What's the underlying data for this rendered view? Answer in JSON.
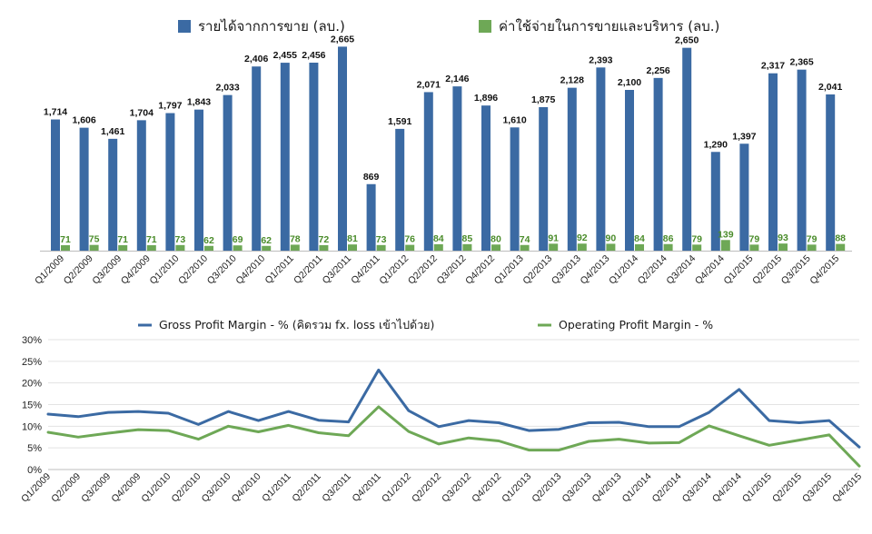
{
  "chart_data": [
    {
      "type": "bar",
      "categories": [
        "Q1/2009",
        "Q2/2009",
        "Q3/2009",
        "Q4/2009",
        "Q1/2010",
        "Q2/2010",
        "Q3/2010",
        "Q4/2010",
        "Q1/2011",
        "Q2/2011",
        "Q3/2011",
        "Q4/2011",
        "Q1/2012",
        "Q2/2012",
        "Q3/2012",
        "Q4/2012",
        "Q1/2013",
        "Q2/2013",
        "Q3/2013",
        "Q4/2013",
        "Q1/2014",
        "Q2/2014",
        "Q3/2014",
        "Q4/2014",
        "Q1/2015",
        "Q2/2015",
        "Q3/2015",
        "Q4/2015"
      ],
      "series": [
        {
          "name": "รายได้จากการขาย (ลบ.)",
          "color": "#3b6aa3",
          "label_color": "#111111",
          "values": [
            1714,
            1606,
            1461,
            1704,
            1797,
            1843,
            2033,
            2406,
            2455,
            2456,
            2665,
            869,
            1591,
            2071,
            2146,
            1896,
            1610,
            1875,
            2128,
            2393,
            2100,
            2256,
            2650,
            1290,
            1397,
            2317,
            2365,
            2041
          ]
        },
        {
          "name": "ค่าใช้จ่ายในการขายและบริหาร (ลบ.)",
          "color": "#6ea856",
          "label_color": "#4a8c2a",
          "values": [
            71,
            75,
            71,
            71,
            73,
            62,
            69,
            62,
            78,
            72,
            81,
            73,
            76,
            84,
            85,
            80,
            74,
            91,
            92,
            90,
            84,
            86,
            79,
            139,
            79,
            93,
            79,
            88
          ]
        }
      ],
      "data_labels": [
        [
          "1,714",
          "1,606",
          "1,461",
          "1,704",
          "1,797",
          "1,843",
          "2,033",
          "2,406",
          "2,455",
          "2,456",
          "2,665",
          "869",
          "1,591",
          "2,071",
          "2,146",
          "1,896",
          "1,610",
          "1,875",
          "2,128",
          "2,393",
          "2,100",
          "2,256",
          "2,650",
          "1,290",
          "1,397",
          "2,317",
          "2,365",
          "2,041"
        ],
        [
          "71",
          "75",
          "71",
          "71",
          "73",
          "62",
          "69",
          "62",
          "78",
          "72",
          "81",
          "73",
          "76",
          "84",
          "85",
          "80",
          "74",
          "91",
          "92",
          "90",
          "84",
          "86",
          "79",
          "139",
          "79",
          "93",
          "79",
          "88"
        ]
      ],
      "ylim": [
        0,
        2800
      ],
      "legend_position": "top",
      "grid": false
    },
    {
      "type": "line",
      "categories": [
        "Q1/2009",
        "Q2/2009",
        "Q3/2009",
        "Q4/2009",
        "Q1/2010",
        "Q2/2010",
        "Q3/2010",
        "Q4/2010",
        "Q1/2011",
        "Q2/2011",
        "Q3/2011",
        "Q4/2011",
        "Q1/2012",
        "Q2/2012",
        "Q3/2012",
        "Q4/2012",
        "Q1/2013",
        "Q2/2013",
        "Q3/2013",
        "Q4/2013",
        "Q1/2014",
        "Q2/2014",
        "Q3/2014",
        "Q4/2014",
        "Q1/2015",
        "Q2/2015",
        "Q3/2015",
        "Q4/2015"
      ],
      "series": [
        {
          "name": "Gross Profit Margin - % (คิดรวม fx. loss เข้าไปด้วย)",
          "color": "#3b6aa3",
          "values": [
            12.8,
            12.2,
            13.2,
            13.4,
            13.0,
            10.4,
            13.4,
            11.3,
            13.4,
            11.4,
            11.0,
            23.0,
            13.6,
            9.9,
            11.3,
            10.8,
            9.0,
            9.3,
            10.8,
            10.9,
            9.9,
            9.9,
            13.2,
            18.5,
            11.3,
            10.8,
            11.3,
            5.2
          ]
        },
        {
          "name": "Operating Profit Margin - %",
          "color": "#6ea856",
          "values": [
            8.6,
            7.5,
            8.4,
            9.2,
            9.0,
            7.0,
            10.0,
            8.7,
            10.2,
            8.5,
            7.8,
            14.5,
            8.8,
            5.9,
            7.3,
            6.6,
            4.5,
            4.5,
            6.5,
            7.0,
            6.1,
            6.2,
            10.1,
            7.8,
            5.6,
            6.8,
            8.0,
            0.8
          ]
        }
      ],
      "yticks": [
        "0%",
        "5%",
        "10%",
        "15%",
        "20%",
        "25%",
        "30%"
      ],
      "ylim": [
        0,
        30
      ],
      "legend_position": "top",
      "grid": true
    }
  ]
}
